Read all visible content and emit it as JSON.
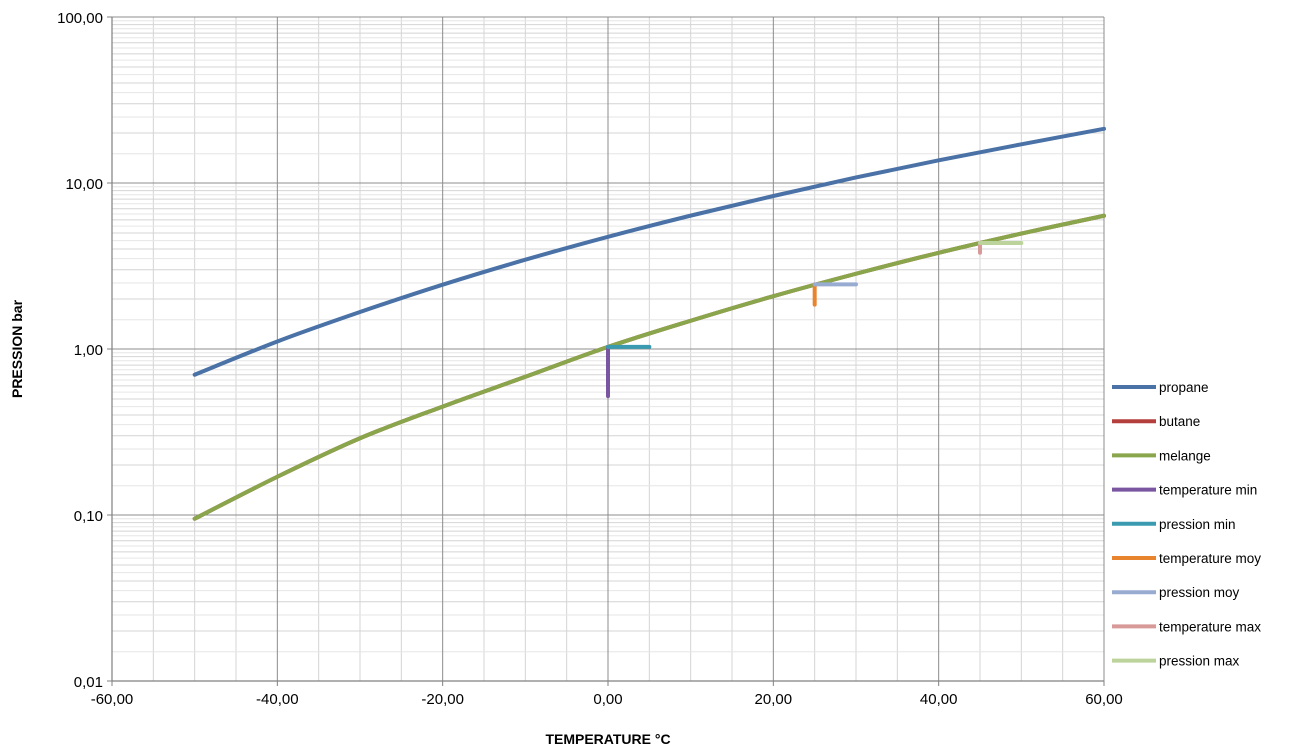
{
  "chart_data": {
    "type": "line",
    "title": "",
    "xlabel": "TEMPERATURE °C",
    "ylabel": "PRESSION bar",
    "xlim": [
      -60,
      60
    ],
    "ylim": [
      0.01,
      100
    ],
    "y_scale": "log",
    "x_major_ticks": [
      -60,
      -40,
      -20,
      0,
      20,
      40,
      60
    ],
    "x_tick_labels": [
      "-60,00",
      "-40,00",
      "-20,00",
      "0,00",
      "20,00",
      "40,00",
      "60,00"
    ],
    "y_major_ticks": [
      0.01,
      0.1,
      1,
      10,
      100
    ],
    "y_tick_labels": [
      "0,01",
      "0,10",
      "1,00",
      "10,00",
      "100,00"
    ],
    "x_minor_step": 5,
    "grid": true,
    "legend_position": "right",
    "series": [
      {
        "name": "propane",
        "color": "#4a72a6",
        "x": [
          -50,
          -40,
          -30,
          -20,
          -10,
          0,
          10,
          20,
          30,
          40,
          50,
          60
        ],
        "y": [
          0.7,
          1.11,
          1.67,
          2.44,
          3.45,
          4.74,
          6.36,
          8.35,
          10.8,
          13.7,
          17.1,
          21.2
        ]
      },
      {
        "name": "butane",
        "color": "#b43f3c",
        "x": [
          -50,
          -40,
          -30,
          -20,
          -10,
          0,
          10,
          20,
          30,
          40,
          50,
          60
        ],
        "y": [
          0.095,
          0.17,
          0.29,
          0.45,
          0.68,
          1.03,
          1.48,
          2.08,
          2.84,
          3.8,
          4.96,
          6.35
        ]
      },
      {
        "name": "melange",
        "color": "#8aa64c",
        "x": [
          -50,
          -40,
          -30,
          -20,
          -10,
          0,
          10,
          20,
          30,
          40,
          50,
          60
        ],
        "y": [
          0.095,
          0.17,
          0.29,
          0.45,
          0.68,
          1.03,
          1.48,
          2.08,
          2.84,
          3.8,
          4.96,
          6.35
        ]
      },
      {
        "name": "temperature min",
        "color": "#7a55a0",
        "x": [
          0,
          0
        ],
        "y": [
          0.52,
          1.03
        ]
      },
      {
        "name": "pression min",
        "color": "#3a9bb0",
        "x": [
          0,
          5
        ],
        "y": [
          1.03,
          1.03
        ]
      },
      {
        "name": "temperature moy",
        "color": "#e8832e",
        "x": [
          25,
          25
        ],
        "y": [
          1.85,
          2.45
        ]
      },
      {
        "name": "pression moy",
        "color": "#98acd2",
        "x": [
          25,
          30
        ],
        "y": [
          2.45,
          2.45
        ]
      },
      {
        "name": "temperature max",
        "color": "#d89a98",
        "x": [
          45,
          45
        ],
        "y": [
          3.8,
          4.35
        ]
      },
      {
        "name": "pression max",
        "color": "#bcd39c",
        "x": [
          45,
          50
        ],
        "y": [
          4.35,
          4.35
        ]
      }
    ]
  }
}
